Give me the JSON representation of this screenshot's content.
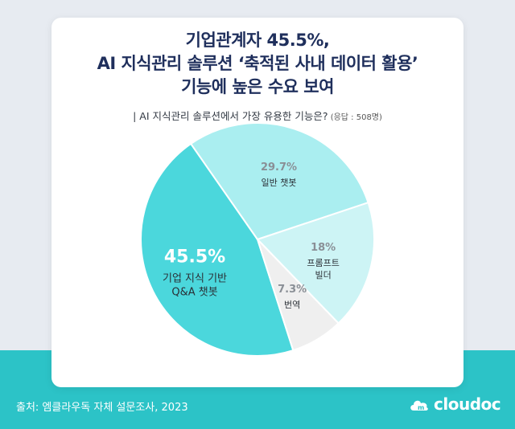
{
  "headline": {
    "line1": "기업관계자 45.5%,",
    "line2": "AI 지식관리 솔루션 ‘축적된 사내 데이터 활용’",
    "line3": "기능에 높은 수요 보여"
  },
  "question": {
    "text": "| AI 지식관리 솔루션에서 가장 유용한 기능은?",
    "respondents": " (응답 : 508명)"
  },
  "footer": {
    "source": "출처: 엠클라우독 자체 설문조사, 2023",
    "brand": "cloudoc",
    "brand_icon": "cloud-logo-icon"
  },
  "colors": {
    "primary": "#1f2f5c",
    "band": "#2cc3c7"
  },
  "chart_data": {
    "type": "pie",
    "title": "| AI 지식관리 솔루션에서 가장 유용한 기능은?",
    "slices": [
      {
        "label_lines": [
          "기업 지식 기반",
          "Q&A 챗봇"
        ],
        "value": 45.5,
        "value_label": "45.5%",
        "color": "#4bd7dc"
      },
      {
        "label_lines": [
          "일반 챗봇"
        ],
        "value": 29.7,
        "value_label": "29.7%",
        "color": "#aaeef0"
      },
      {
        "label_lines": [
          "프롬프트",
          "빌더"
        ],
        "value": 18,
        "value_label": "18%",
        "color": "#cdf4f5"
      },
      {
        "label_lines": [
          "번역"
        ],
        "value": 7.3,
        "value_label": "7.3%",
        "color": "#efefef"
      }
    ]
  }
}
